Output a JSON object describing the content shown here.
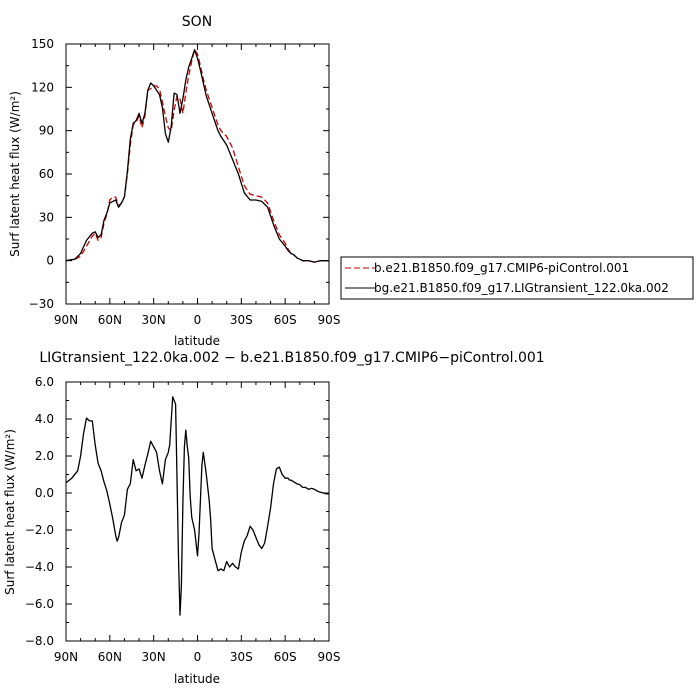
{
  "chart_data": [
    {
      "type": "line",
      "title": "SON",
      "xlabel": "latitude",
      "ylabel": "Surf latent heat flux (W/m²)",
      "xlim": [
        90,
        -90
      ],
      "ylim": [
        -30,
        150
      ],
      "yticks": [
        -30,
        0,
        30,
        60,
        90,
        120,
        150
      ],
      "ytick_labels": [
        "−30",
        "0",
        "30",
        "60",
        "90",
        "120",
        "150"
      ],
      "xticks": [
        90,
        60,
        30,
        0,
        -30,
        -60,
        -90
      ],
      "xtick_labels": [
        "90N",
        "60N",
        "30N",
        "0",
        "30S",
        "60S",
        "90S"
      ],
      "legend_position": "right",
      "series": [
        {
          "name": "b.e21.B1850.f09_g17.CMIP6-piControl.001",
          "color": "#cc0000",
          "dash": "dashed",
          "x": [
            90,
            84,
            80,
            76,
            72,
            70,
            68,
            66,
            64,
            62,
            60,
            58,
            56,
            54,
            52,
            50,
            48,
            46,
            44,
            42,
            40,
            38,
            36,
            34,
            32,
            30,
            28,
            26,
            24,
            22,
            20,
            18,
            16,
            14,
            12,
            10,
            8,
            6,
            4,
            2,
            0,
            -2,
            -4,
            -6,
            -8,
            -10,
            -12,
            -14,
            -16,
            -20,
            -24,
            -28,
            -32,
            -36,
            -40,
            -44,
            -48,
            -52,
            -56,
            -60,
            -62,
            -64,
            -66,
            -68,
            -72,
            -76,
            -80,
            -84,
            -88,
            -90
          ],
          "y": [
            0,
            1,
            3,
            10,
            17,
            19,
            14,
            16,
            26,
            32,
            42,
            44,
            44,
            38,
            40,
            44,
            60,
            80,
            94,
            96,
            100,
            92,
            100,
            118,
            119,
            121,
            121,
            119,
            110,
            100,
            92,
            90,
            104,
            114,
            112,
            102,
            116,
            128,
            138,
            146,
            143,
            135,
            126,
            118,
            112,
            106,
            100,
            94,
            90,
            86,
            78,
            65,
            52,
            46,
            45,
            44,
            40,
            28,
            18,
            12,
            8,
            5,
            4,
            2,
            0,
            0,
            -1,
            0,
            0,
            0
          ]
        },
        {
          "name": "bg.e21.B1850.f09_g17.LIGtransient_122.0ka.002",
          "color": "#000000",
          "dash": "solid",
          "x": [
            90,
            84,
            80,
            76,
            72,
            70,
            68,
            66,
            64,
            62,
            60,
            58,
            56,
            54,
            52,
            50,
            48,
            46,
            44,
            42,
            40,
            38,
            36,
            34,
            32,
            30,
            28,
            26,
            24,
            22,
            20,
            18,
            16,
            14,
            12,
            10,
            8,
            6,
            4,
            2,
            0,
            -2,
            -4,
            -6,
            -8,
            -10,
            -12,
            -14,
            -16,
            -20,
            -24,
            -28,
            -32,
            -36,
            -40,
            -44,
            -48,
            -52,
            -56,
            -60,
            -62,
            -64,
            -66,
            -68,
            -72,
            -76,
            -80,
            -84,
            -88,
            -90
          ],
          "y": [
            0,
            1,
            5,
            14,
            19,
            20,
            16,
            18,
            28,
            33,
            40,
            41,
            42,
            37,
            40,
            44,
            62,
            84,
            95,
            97,
            102,
            95,
            102,
            118,
            123,
            121,
            118,
            115,
            106,
            88,
            82,
            93,
            116,
            115,
            102,
            112,
            125,
            134,
            140,
            146,
            140,
            132,
            123,
            114,
            108,
            102,
            96,
            90,
            86,
            80,
            70,
            60,
            47,
            42,
            42,
            41,
            37,
            25,
            15,
            10,
            7,
            5,
            4,
            2,
            0,
            0,
            -1,
            0,
            0,
            0
          ]
        }
      ]
    },
    {
      "type": "line",
      "title": "LIGtransient_122.0ka.002 − b.e21.B1850.f09_g17.CMIP6−piControl.001",
      "xlabel": "latitude",
      "ylabel": "Surf latent heat flux (W/m²)",
      "xlim": [
        90,
        -90
      ],
      "ylim": [
        -8.0,
        6.0
      ],
      "yticks": [
        -8,
        -6,
        -4,
        -2,
        0,
        2,
        4,
        6
      ],
      "ytick_labels": [
        "−8.0",
        "−6.0",
        "−4.0",
        "−2.0",
        "0.0",
        "2.0",
        "4.0",
        "6.0"
      ],
      "xticks": [
        90,
        60,
        30,
        0,
        -30,
        -60,
        -90
      ],
      "xtick_labels": [
        "90N",
        "60N",
        "30N",
        "0",
        "30S",
        "60S",
        "90S"
      ],
      "series": [
        {
          "name": "",
          "color": "#000000",
          "dash": "solid",
          "x": [
            90,
            86,
            82,
            80,
            78,
            76,
            74,
            72,
            70,
            68,
            66,
            64,
            62,
            60,
            58,
            56,
            55,
            54,
            52,
            50,
            48,
            46,
            44,
            42,
            40,
            38,
            36,
            34,
            32,
            30,
            28,
            26,
            24,
            22,
            20,
            19,
            17,
            15,
            14,
            13,
            12,
            11,
            10,
            9,
            8,
            7,
            6,
            5,
            4,
            2,
            0,
            -1,
            -3,
            -4,
            -6,
            -8,
            -9,
            -10,
            -12,
            -14,
            -16,
            -18,
            -20,
            -22,
            -24,
            -26,
            -28,
            -30,
            -32,
            -34,
            -36,
            -38,
            -40,
            -42,
            -44,
            -46,
            -48,
            -50,
            -52,
            -54,
            -56,
            -58,
            -60,
            -62,
            -63,
            -64,
            -66,
            -68,
            -70,
            -72,
            -74,
            -76,
            -78,
            -80,
            -82,
            -84,
            -86,
            -88,
            -90
          ],
          "y": [
            0.55,
            0.8,
            1.2,
            2.0,
            3.2,
            4.05,
            3.9,
            3.9,
            2.6,
            1.6,
            1.2,
            0.6,
            0.1,
            -0.6,
            -1.4,
            -2.3,
            -2.6,
            -2.4,
            -1.6,
            -1.2,
            0.2,
            0.5,
            1.8,
            1.2,
            1.3,
            0.8,
            1.5,
            2.1,
            2.8,
            2.5,
            2.2,
            1.2,
            0.5,
            1.8,
            2.2,
            2.6,
            5.2,
            4.8,
            0.8,
            -3.5,
            -6.6,
            -5.0,
            -0.5,
            2.5,
            3.4,
            2.5,
            1.9,
            -0.2,
            -1.3,
            -2.0,
            -3.4,
            -2.2,
            1.5,
            2.2,
            1.0,
            -0.4,
            -1.5,
            -3.0,
            -3.6,
            -4.2,
            -4.1,
            -4.2,
            -3.7,
            -4.0,
            -3.8,
            -4.0,
            -4.1,
            -3.2,
            -2.6,
            -2.3,
            -1.8,
            -2.0,
            -2.4,
            -2.8,
            -3.0,
            -2.7,
            -1.8,
            -0.8,
            0.5,
            1.3,
            1.4,
            1.0,
            0.8,
            0.8,
            0.7,
            0.7,
            0.6,
            0.5,
            0.45,
            0.3,
            0.3,
            0.2,
            0.25,
            0.2,
            0.1,
            0.05,
            0.0,
            -0.05,
            -0.05
          ]
        }
      ]
    }
  ]
}
